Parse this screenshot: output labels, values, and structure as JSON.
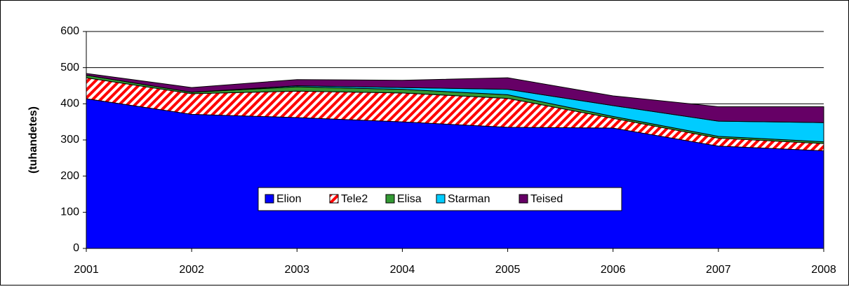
{
  "chart_data": {
    "type": "stacked_area",
    "ylabel": "(tuhandetes)",
    "categories": [
      "2001",
      "2002",
      "2003",
      "2004",
      "2005",
      "2006",
      "2007",
      "2008"
    ],
    "series": [
      {
        "name": "Elion",
        "color": "#0000ff",
        "values": [
          414,
          371,
          362,
          350,
          335,
          333,
          283,
          270
        ]
      },
      {
        "name": "Tele2",
        "color": "#ff0000",
        "values": [
          58,
          57,
          73,
          80,
          80,
          27,
          22,
          20
        ]
      },
      {
        "name": "Elisa",
        "color": "#339933",
        "values": [
          7,
          4,
          12,
          10,
          10,
          5,
          5,
          5
        ]
      },
      {
        "name": "Starman",
        "color": "#00ccff",
        "values": [
          0,
          0,
          3,
          5,
          15,
          30,
          42,
          53
        ]
      },
      {
        "name": "Teised",
        "color": "#660066",
        "values": [
          5,
          13,
          17,
          20,
          32,
          27,
          40,
          44
        ]
      }
    ],
    "ylim": [
      0,
      600
    ],
    "yticks": [
      0,
      100,
      200,
      300,
      400,
      500,
      600
    ],
    "grid": true
  }
}
